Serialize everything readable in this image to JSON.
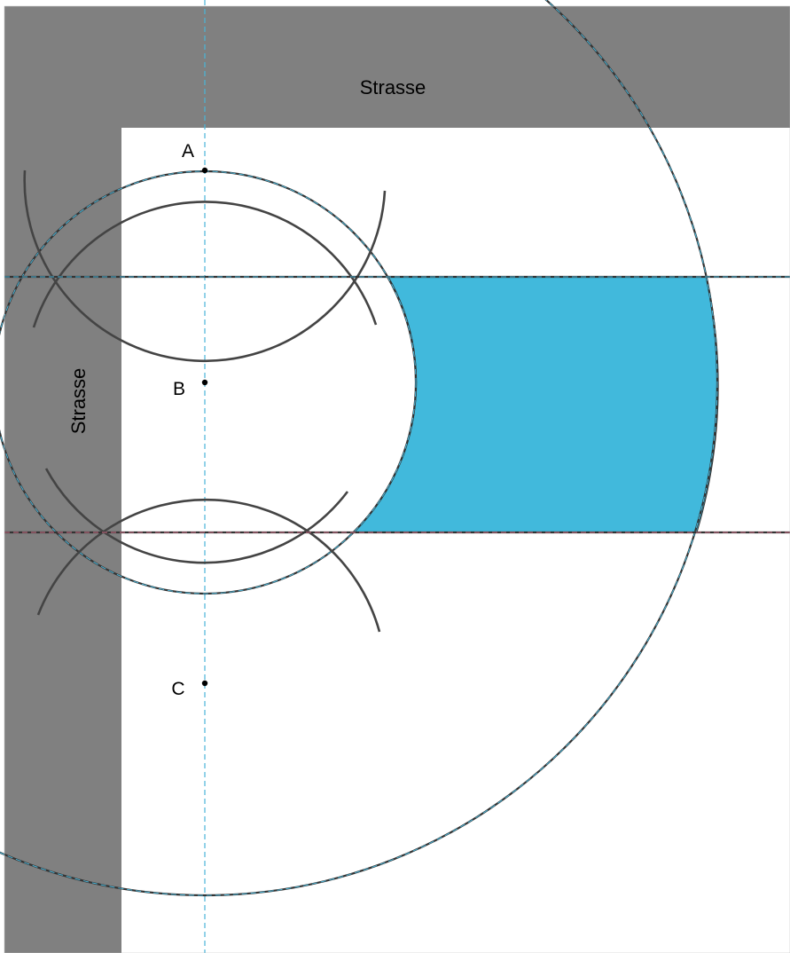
{
  "streets": {
    "top_label": "Strasse",
    "left_label": "Strasse"
  },
  "points": [
    {
      "id": "A",
      "label": "A"
    },
    {
      "id": "B",
      "label": "B"
    },
    {
      "id": "C",
      "label": "C"
    }
  ],
  "colors": {
    "street": "#808080",
    "region_fill": "#41b9dc",
    "construction_line": "#333333",
    "axis_line": "#49b5d8",
    "border": "#555555"
  }
}
